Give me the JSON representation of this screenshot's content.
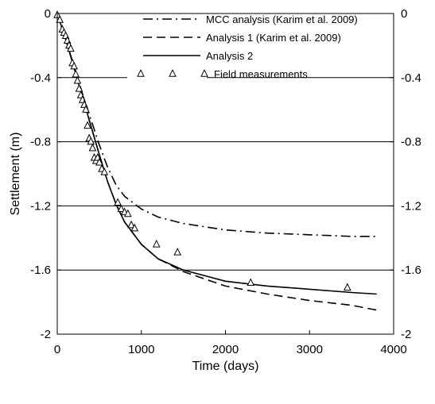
{
  "chart_data": {
    "type": "line",
    "xlabel": "Time (days)",
    "ylabel": "Settlement (m)",
    "xlim": [
      0,
      4000
    ],
    "ylim": [
      -2,
      0
    ],
    "x_ticks": [
      0,
      1000,
      2000,
      3000,
      4000
    ],
    "y_ticks": [
      0,
      -0.4,
      -0.8,
      -1.2,
      -1.6,
      -2
    ],
    "y_tick_labels": [
      "0",
      "-0.4",
      "-0.8",
      "-1.2",
      "-1.6",
      "-2"
    ],
    "right_axis_ticks": true,
    "grid": "horizontal",
    "legend_position": "top-right",
    "series": [
      {
        "name": "MCC analysis (Karim et al. 2009)",
        "style": "dash-dot",
        "x": [
          0,
          100,
          200,
          300,
          400,
          500,
          600,
          700,
          800,
          1000,
          1200,
          1500,
          2000,
          2500,
          3000,
          3500,
          3800
        ],
        "y": [
          0,
          -0.16,
          -0.33,
          -0.5,
          -0.66,
          -0.82,
          -0.96,
          -1.07,
          -1.14,
          -1.22,
          -1.27,
          -1.31,
          -1.35,
          -1.37,
          -1.38,
          -1.39,
          -1.39
        ]
      },
      {
        "name": "Analysis 1 (Karim et al. 2009)",
        "style": "dashed",
        "x": [
          0,
          100,
          200,
          300,
          400,
          500,
          600,
          700,
          800,
          1000,
          1200,
          1500,
          2000,
          2500,
          3000,
          3500,
          3800
        ],
        "y": [
          0,
          -0.16,
          -0.34,
          -0.52,
          -0.7,
          -0.88,
          -1.05,
          -1.19,
          -1.3,
          -1.44,
          -1.53,
          -1.61,
          -1.7,
          -1.75,
          -1.79,
          -1.82,
          -1.85
        ]
      },
      {
        "name": "Analysis 2",
        "style": "solid",
        "x": [
          0,
          100,
          200,
          300,
          400,
          500,
          600,
          700,
          800,
          1000,
          1200,
          1500,
          2000,
          2500,
          3000,
          3500,
          3800
        ],
        "y": [
          0,
          -0.16,
          -0.34,
          -0.52,
          -0.7,
          -0.88,
          -1.05,
          -1.19,
          -1.3,
          -1.44,
          -1.53,
          -1.6,
          -1.67,
          -1.7,
          -1.72,
          -1.74,
          -1.75
        ]
      }
    ],
    "markers": {
      "name": "Field measurements",
      "symbol": "triangle",
      "x": [
        0,
        30,
        60,
        80,
        100,
        120,
        140,
        160,
        180,
        200,
        220,
        240,
        260,
        280,
        300,
        320,
        340,
        360,
        380,
        400,
        420,
        440,
        460,
        480,
        500,
        530,
        560,
        720,
        760,
        800,
        840,
        880,
        920,
        1180,
        1430,
        2300,
        3450
      ],
      "y": [
        -0.01,
        -0.04,
        -0.1,
        -0.12,
        -0.14,
        -0.17,
        -0.2,
        -0.22,
        -0.31,
        -0.33,
        -0.38,
        -0.42,
        -0.47,
        -0.51,
        -0.54,
        -0.57,
        -0.6,
        -0.7,
        -0.78,
        -0.8,
        -0.84,
        -0.9,
        -0.92,
        -0.9,
        -0.93,
        -0.97,
        -0.99,
        -1.18,
        -1.22,
        -1.24,
        -1.25,
        -1.32,
        -1.34,
        -1.44,
        -1.49,
        -1.68,
        -1.71
      ]
    },
    "legend": [
      {
        "label": "MCC analysis (Karim et al. 2009)",
        "style": "dash-dot"
      },
      {
        "label": "Analysis 1 (Karim et al. 2009)",
        "style": "dashed"
      },
      {
        "label": "Analysis 2",
        "style": "solid"
      },
      {
        "label": "Field measurements",
        "style": "triangles"
      }
    ]
  }
}
